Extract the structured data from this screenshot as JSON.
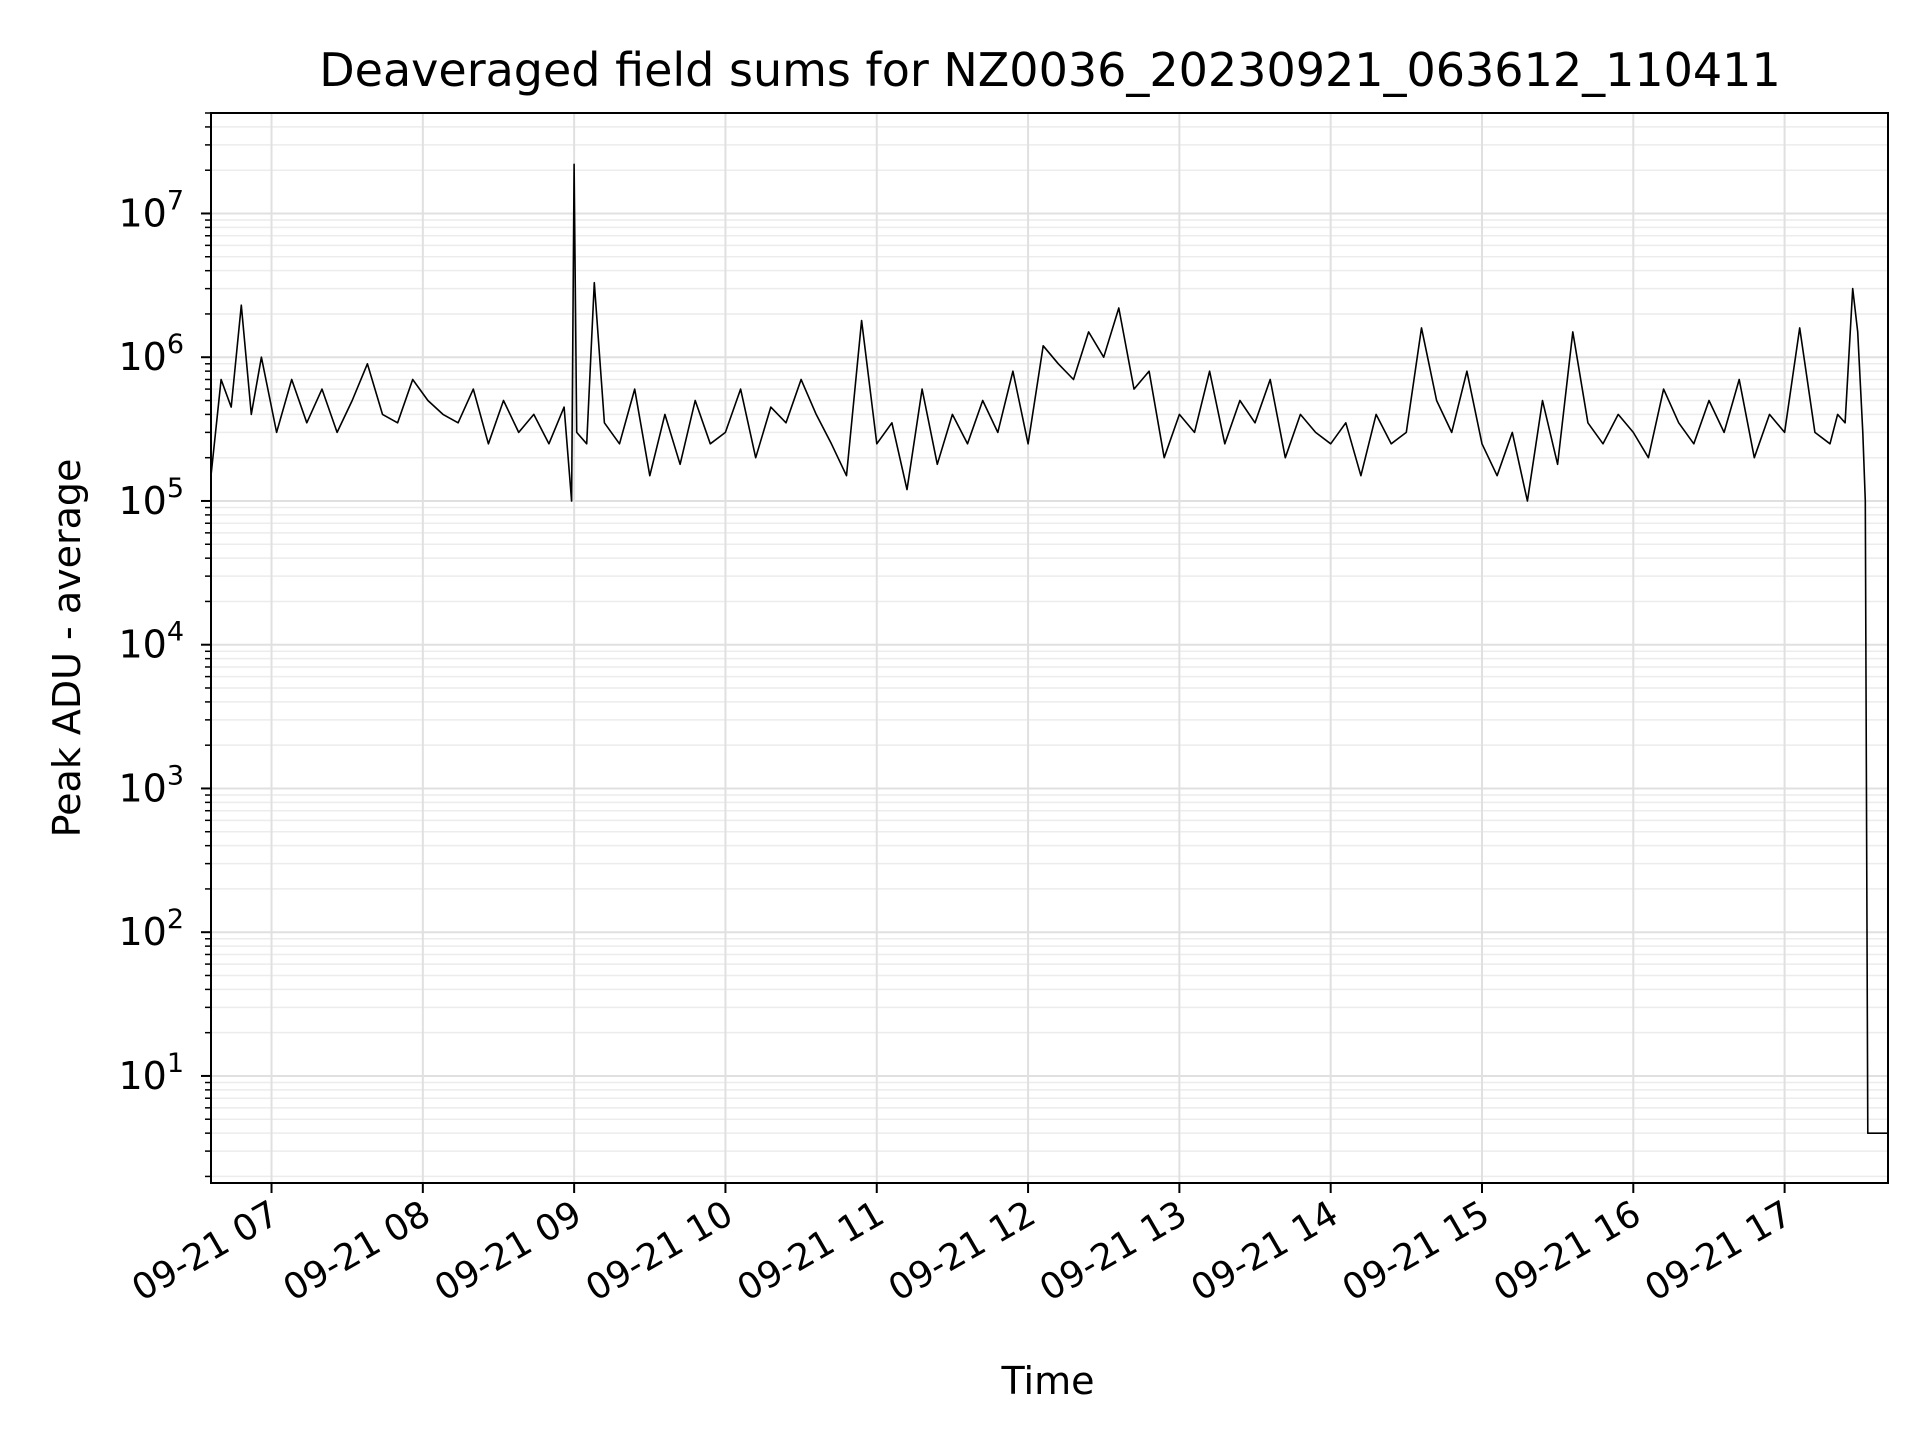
{
  "chart_data": {
    "type": "line",
    "title": "Deaveraged field sums for NZ0036_20230921_063612_110411",
    "xlabel": "Time",
    "ylabel": "Peak ADU - average",
    "yscale": "log",
    "grid": true,
    "minor_grid": true,
    "line_color": "#000000",
    "xlim": [
      "2023-09-21 06:36",
      "2023-09-21 17:41"
    ],
    "ylim": [
      1.8,
      50000000
    ],
    "x_ticks": [
      {
        "time": "2023-09-21 07:00",
        "label": "09-21 07"
      },
      {
        "time": "2023-09-21 08:00",
        "label": "09-21 08"
      },
      {
        "time": "2023-09-21 09:00",
        "label": "09-21 09"
      },
      {
        "time": "2023-09-21 10:00",
        "label": "09-21 10"
      },
      {
        "time": "2023-09-21 11:00",
        "label": "09-21 11"
      },
      {
        "time": "2023-09-21 12:00",
        "label": "09-21 12"
      },
      {
        "time": "2023-09-21 13:00",
        "label": "09-21 13"
      },
      {
        "time": "2023-09-21 14:00",
        "label": "09-21 14"
      },
      {
        "time": "2023-09-21 15:00",
        "label": "09-21 15"
      },
      {
        "time": "2023-09-21 16:00",
        "label": "09-21 16"
      },
      {
        "time": "2023-09-21 17:00",
        "label": "09-21 17"
      }
    ],
    "y_ticks": [
      {
        "value": 10,
        "base": "10",
        "exp": "1"
      },
      {
        "value": 100,
        "base": "10",
        "exp": "2"
      },
      {
        "value": 1000,
        "base": "10",
        "exp": "3"
      },
      {
        "value": 10000,
        "base": "10",
        "exp": "4"
      },
      {
        "value": 100000,
        "base": "10",
        "exp": "5"
      },
      {
        "value": 1000000,
        "base": "10",
        "exp": "6"
      },
      {
        "value": 10000000,
        "base": "10",
        "exp": "7"
      }
    ],
    "series": [
      {
        "x": [
          "2023-09-21 06:36",
          "2023-09-21 06:40",
          "2023-09-21 06:44",
          "2023-09-21 06:48",
          "2023-09-21 06:52",
          "2023-09-21 06:56",
          "2023-09-21 07:02",
          "2023-09-21 07:08",
          "2023-09-21 07:14",
          "2023-09-21 07:20",
          "2023-09-21 07:26",
          "2023-09-21 07:32",
          "2023-09-21 07:38",
          "2023-09-21 07:44",
          "2023-09-21 07:50",
          "2023-09-21 07:56",
          "2023-09-21 08:02",
          "2023-09-21 08:08",
          "2023-09-21 08:14",
          "2023-09-21 08:20",
          "2023-09-21 08:26",
          "2023-09-21 08:32",
          "2023-09-21 08:38",
          "2023-09-21 08:44",
          "2023-09-21 08:50",
          "2023-09-21 08:56",
          "2023-09-21 08:59",
          "2023-09-21 09:00",
          "2023-09-21 09:01",
          "2023-09-21 09:05",
          "2023-09-21 09:08",
          "2023-09-21 09:12",
          "2023-09-21 09:18",
          "2023-09-21 09:24",
          "2023-09-21 09:30",
          "2023-09-21 09:36",
          "2023-09-21 09:42",
          "2023-09-21 09:48",
          "2023-09-21 09:54",
          "2023-09-21 10:00",
          "2023-09-21 10:06",
          "2023-09-21 10:12",
          "2023-09-21 10:18",
          "2023-09-21 10:24",
          "2023-09-21 10:30",
          "2023-09-21 10:36",
          "2023-09-21 10:42",
          "2023-09-21 10:48",
          "2023-09-21 10:54",
          "2023-09-21 11:00",
          "2023-09-21 11:06",
          "2023-09-21 11:12",
          "2023-09-21 11:18",
          "2023-09-21 11:24",
          "2023-09-21 11:30",
          "2023-09-21 11:36",
          "2023-09-21 11:42",
          "2023-09-21 11:48",
          "2023-09-21 11:54",
          "2023-09-21 12:00",
          "2023-09-21 12:06",
          "2023-09-21 12:12",
          "2023-09-21 12:18",
          "2023-09-21 12:24",
          "2023-09-21 12:30",
          "2023-09-21 12:36",
          "2023-09-21 12:42",
          "2023-09-21 12:48",
          "2023-09-21 12:54",
          "2023-09-21 13:00",
          "2023-09-21 13:06",
          "2023-09-21 13:12",
          "2023-09-21 13:18",
          "2023-09-21 13:24",
          "2023-09-21 13:30",
          "2023-09-21 13:36",
          "2023-09-21 13:42",
          "2023-09-21 13:48",
          "2023-09-21 13:54",
          "2023-09-21 14:00",
          "2023-09-21 14:06",
          "2023-09-21 14:12",
          "2023-09-21 14:18",
          "2023-09-21 14:24",
          "2023-09-21 14:30",
          "2023-09-21 14:36",
          "2023-09-21 14:42",
          "2023-09-21 14:48",
          "2023-09-21 14:54",
          "2023-09-21 15:00",
          "2023-09-21 15:06",
          "2023-09-21 15:12",
          "2023-09-21 15:18",
          "2023-09-21 15:24",
          "2023-09-21 15:30",
          "2023-09-21 15:36",
          "2023-09-21 15:42",
          "2023-09-21 15:48",
          "2023-09-21 15:54",
          "2023-09-21 16:00",
          "2023-09-21 16:06",
          "2023-09-21 16:12",
          "2023-09-21 16:18",
          "2023-09-21 16:24",
          "2023-09-21 16:30",
          "2023-09-21 16:36",
          "2023-09-21 16:42",
          "2023-09-21 16:48",
          "2023-09-21 16:54",
          "2023-09-21 17:00",
          "2023-09-21 17:06",
          "2023-09-21 17:12",
          "2023-09-21 17:18",
          "2023-09-21 17:21",
          "2023-09-21 17:24",
          "2023-09-21 17:27",
          "2023-09-21 17:29",
          "2023-09-21 17:31",
          "2023-09-21 17:32",
          "2023-09-21 17:33",
          "2023-09-21 17:35",
          "2023-09-21 17:38",
          "2023-09-21 17:41"
        ],
        "y": [
          150000,
          700000,
          450000,
          2300000,
          400000,
          1000000,
          300000,
          700000,
          350000,
          600000,
          300000,
          500000,
          900000,
          400000,
          350000,
          700000,
          500000,
          400000,
          350000,
          600000,
          250000,
          500000,
          300000,
          400000,
          250000,
          450000,
          100000,
          22000000,
          300000,
          250000,
          3300000,
          350000,
          250000,
          600000,
          150000,
          400000,
          180000,
          500000,
          250000,
          300000,
          600000,
          200000,
          450000,
          350000,
          700000,
          400000,
          250000,
          150000,
          1800000,
          250000,
          350000,
          120000,
          600000,
          180000,
          400000,
          250000,
          500000,
          300000,
          800000,
          250000,
          1200000,
          900000,
          700000,
          1500000,
          1000000,
          2200000,
          600000,
          800000,
          200000,
          400000,
          300000,
          800000,
          250000,
          500000,
          350000,
          700000,
          200000,
          400000,
          300000,
          250000,
          350000,
          150000,
          400000,
          250000,
          300000,
          1600000,
          500000,
          300000,
          800000,
          250000,
          150000,
          300000,
          100000,
          500000,
          180000,
          1500000,
          350000,
          250000,
          400000,
          300000,
          200000,
          600000,
          350000,
          250000,
          500000,
          300000,
          700000,
          200000,
          400000,
          300000,
          1600000,
          300000,
          250000,
          400000,
          350000,
          3000000,
          1500000,
          300000,
          100000,
          4,
          4,
          4,
          4
        ]
      }
    ]
  }
}
